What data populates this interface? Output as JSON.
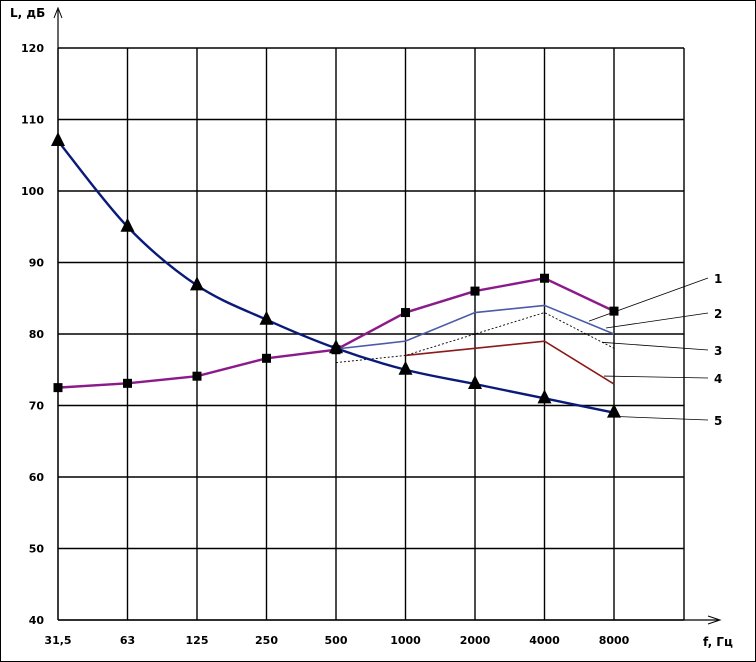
{
  "chart_data": {
    "type": "line",
    "xlabel": "f, Гц",
    "ylabel": "L, дБ",
    "categories": [
      "31,5",
      "63",
      "125",
      "250",
      "500",
      "1000",
      "2000",
      "4000",
      "8000"
    ],
    "yticks": [
      "40",
      "50",
      "60",
      "70",
      "80",
      "90",
      "100",
      "110",
      "120"
    ],
    "ylim": [
      40,
      120
    ],
    "grid": true,
    "series": [
      {
        "label": "1",
        "color": "#8B1A8B",
        "marker": "square",
        "style": "solid",
        "values": [
          72.5,
          73.1,
          74.1,
          76.6,
          77.8,
          83.0,
          86.0,
          87.8,
          83.2
        ]
      },
      {
        "label": "2",
        "color": "#4A5BA8",
        "marker": "none",
        "style": "solid",
        "values": [
          null,
          null,
          null,
          null,
          77.9,
          79.0,
          83.0,
          84.0,
          80.0
        ]
      },
      {
        "label": "3",
        "color": "#000000",
        "marker": "none",
        "style": "dashed",
        "values": [
          null,
          null,
          null,
          null,
          76.0,
          77.0,
          80.0,
          83.0,
          78.0
        ]
      },
      {
        "label": "4",
        "color": "#8B1A1A",
        "marker": "none",
        "style": "solid",
        "values": [
          null,
          null,
          null,
          null,
          null,
          77.0,
          78.0,
          79.0,
          73.0
        ]
      },
      {
        "label": "5",
        "color": "#0A1A7A",
        "marker": "triangle",
        "style": "solid",
        "values": [
          107.0,
          95.0,
          86.8,
          82.0,
          78.0,
          75.0,
          73.0,
          71.0,
          69.0
        ]
      }
    ]
  }
}
